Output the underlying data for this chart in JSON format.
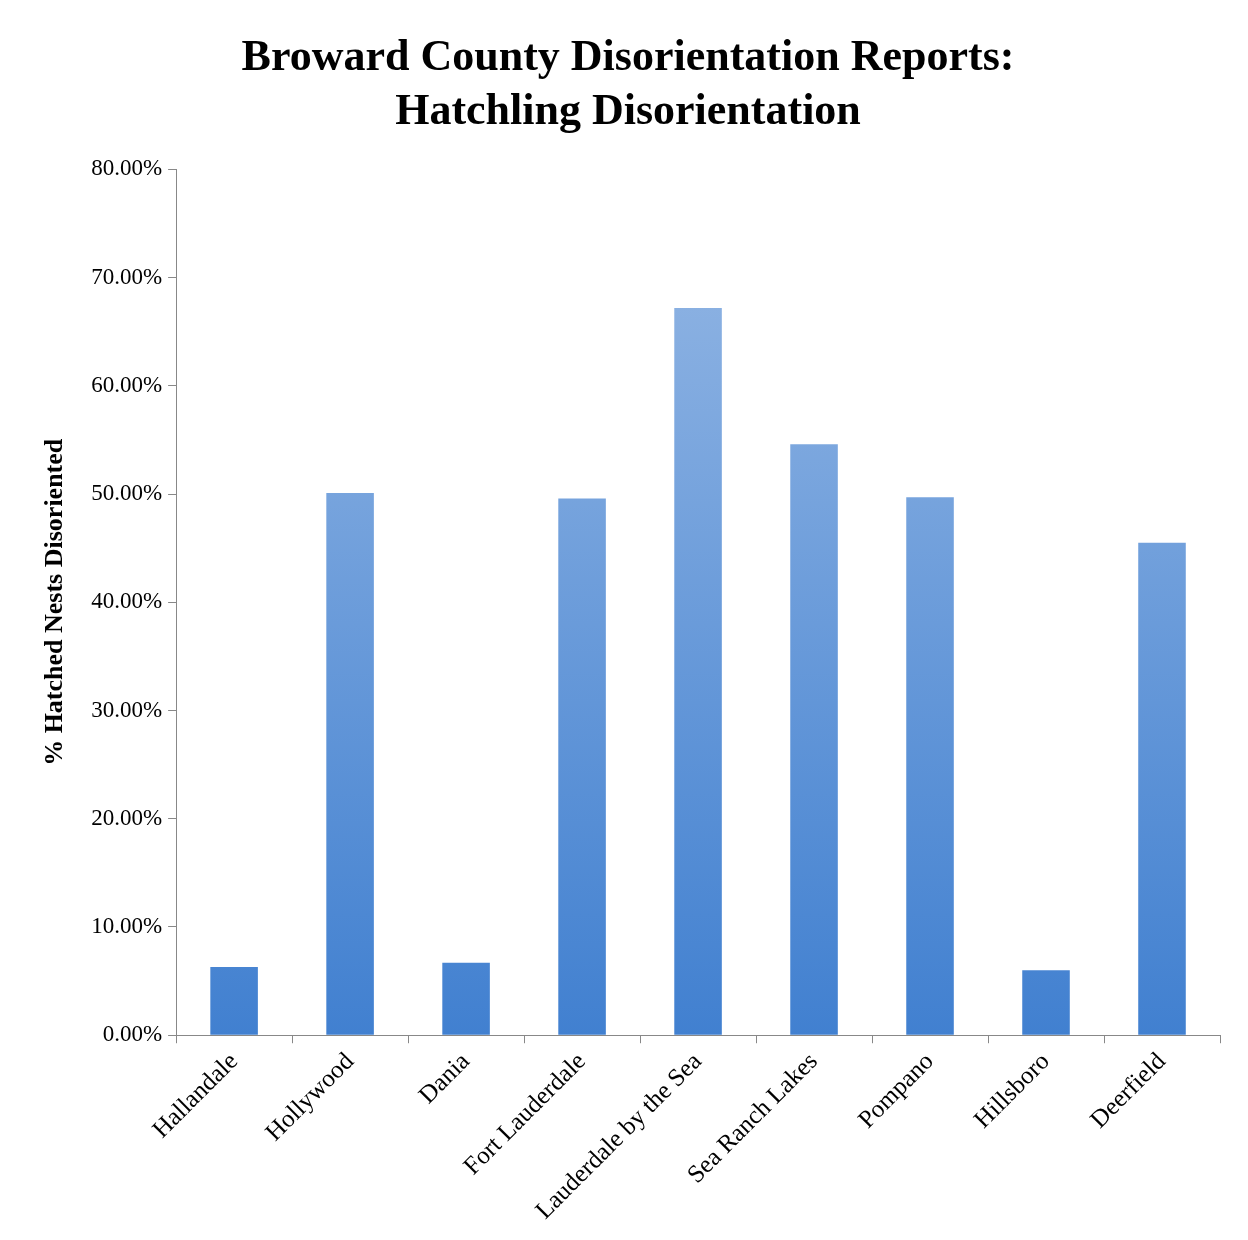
{
  "chart_data": {
    "type": "bar",
    "title": [
      "Broward County Disorientation Reports:",
      "Hatchling Disorientation"
    ],
    "ylabel": "% Hatched Nests Disoriented",
    "categories": [
      "Hallandale",
      "Hollywood",
      "Dania",
      "Fort Lauderdale",
      "Lauderdale by the Sea",
      "Sea Ranch Lakes",
      "Pompano",
      "Hillsboro",
      "Deerfield"
    ],
    "values": [
      6.3,
      50.1,
      6.7,
      49.6,
      67.2,
      54.6,
      49.7,
      6.0,
      45.5
    ],
    "color": "#4180d0",
    "ylim": [
      0,
      80
    ],
    "yticks": [
      {
        "value": 0,
        "label": "0.00%"
      },
      {
        "value": 10,
        "label": "10.00%"
      },
      {
        "value": 20,
        "label": "20.00%"
      },
      {
        "value": 30,
        "label": "30.00%"
      },
      {
        "value": 40,
        "label": "40.00%"
      },
      {
        "value": 50,
        "label": "50.00%"
      },
      {
        "value": 60,
        "label": "60.00%"
      },
      {
        "value": 70,
        "label": "70.00%"
      },
      {
        "value": 80,
        "label": "80.00%"
      }
    ],
    "grid": false,
    "legend": false
  }
}
